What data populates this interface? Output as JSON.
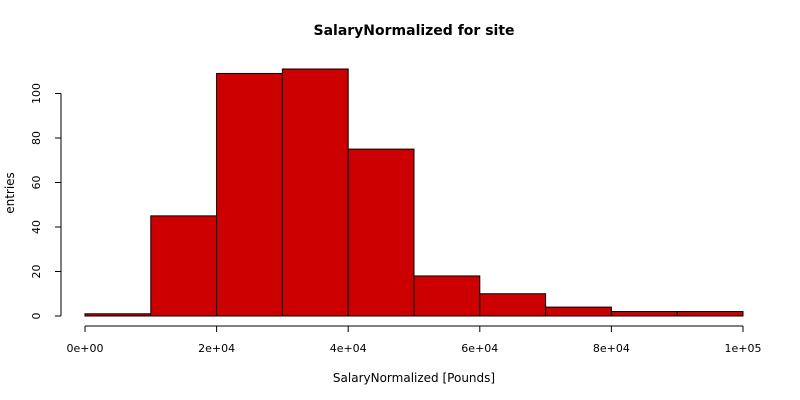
{
  "chart_data": {
    "type": "bar",
    "title": "SalaryNormalized for site",
    "xlabel": "SalaryNormalized [Pounds]",
    "ylabel": "entries",
    "bin_edges": [
      0,
      10000,
      20000,
      30000,
      40000,
      50000,
      60000,
      70000,
      80000,
      90000,
      100000
    ],
    "values": [
      1,
      45,
      109,
      111,
      75,
      18,
      10,
      4,
      2,
      2
    ],
    "xlim": [
      0,
      100000
    ],
    "ylim": [
      0,
      111
    ],
    "x_ticks": [
      {
        "value": 0,
        "label": "0e+00"
      },
      {
        "value": 20000,
        "label": "2e+04"
      },
      {
        "value": 40000,
        "label": "4e+04"
      },
      {
        "value": 60000,
        "label": "6e+04"
      },
      {
        "value": 80000,
        "label": "8e+04"
      },
      {
        "value": 100000,
        "label": "1e+05"
      }
    ],
    "y_ticks": [
      {
        "value": 0,
        "label": "0"
      },
      {
        "value": 20,
        "label": "20"
      },
      {
        "value": 40,
        "label": "40"
      },
      {
        "value": 60,
        "label": "60"
      },
      {
        "value": 80,
        "label": "80"
      },
      {
        "value": 100,
        "label": "100"
      }
    ],
    "grid": false,
    "bar_color": "#cc0000",
    "edge_color": "#000000"
  }
}
